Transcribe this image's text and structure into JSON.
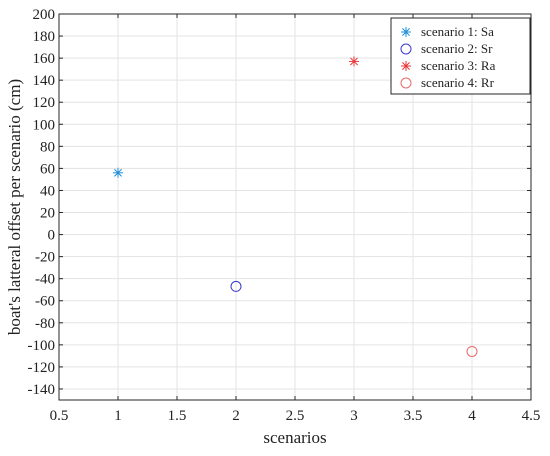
{
  "chart_data": {
    "type": "scatter",
    "xlabel": "scenarios",
    "ylabel": "boat's latteral offset per scenario (cm)",
    "xlim": [
      0.5,
      4.5
    ],
    "ylim": [
      -150,
      200
    ],
    "xticks": [
      "0.5",
      "1",
      "1.5",
      "2",
      "2.5",
      "3",
      "3.5",
      "4",
      "4.5"
    ],
    "xtick_values": [
      0.5,
      1,
      1.5,
      2,
      2.5,
      3,
      3.5,
      4,
      4.5
    ],
    "yticks": [
      "200",
      "180",
      "160",
      "140",
      "120",
      "100",
      "80",
      "60",
      "40",
      "20",
      "0",
      "-20",
      "-40",
      "-60",
      "-80",
      "-100",
      "-120",
      "-140"
    ],
    "ytick_values": [
      200,
      180,
      160,
      140,
      120,
      100,
      80,
      60,
      40,
      20,
      0,
      -20,
      -40,
      -60,
      -80,
      -100,
      -120,
      -140
    ],
    "grid": true,
    "legend_position": "top-right",
    "series": [
      {
        "name": "scenario 1: Sa",
        "marker": "asterisk",
        "color": "#1f8fd6",
        "x": [
          1
        ],
        "y": [
          56
        ]
      },
      {
        "name": "scenario 2: Sr",
        "marker": "circle",
        "color": "#3a3acc",
        "x": [
          2
        ],
        "y": [
          -47
        ]
      },
      {
        "name": "scenario 3: Ra",
        "marker": "asterisk",
        "color": "#e8383a",
        "x": [
          3
        ],
        "y": [
          157
        ]
      },
      {
        "name": "scenario 4: Rr",
        "marker": "circle",
        "color": "#e86a6a",
        "x": [
          4
        ],
        "y": [
          -106
        ]
      }
    ]
  }
}
